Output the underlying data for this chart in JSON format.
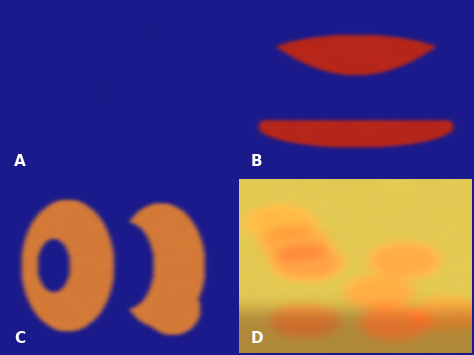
{
  "background_color": "#1a1a8c",
  "labels": [
    "A",
    "B",
    "C",
    "D"
  ],
  "label_color": "white",
  "label_fontsize": 11,
  "label_fontweight": "bold",
  "figsize": [
    4.74,
    3.55
  ],
  "dpi": 100,
  "panel_bg": "#1a1a8c"
}
